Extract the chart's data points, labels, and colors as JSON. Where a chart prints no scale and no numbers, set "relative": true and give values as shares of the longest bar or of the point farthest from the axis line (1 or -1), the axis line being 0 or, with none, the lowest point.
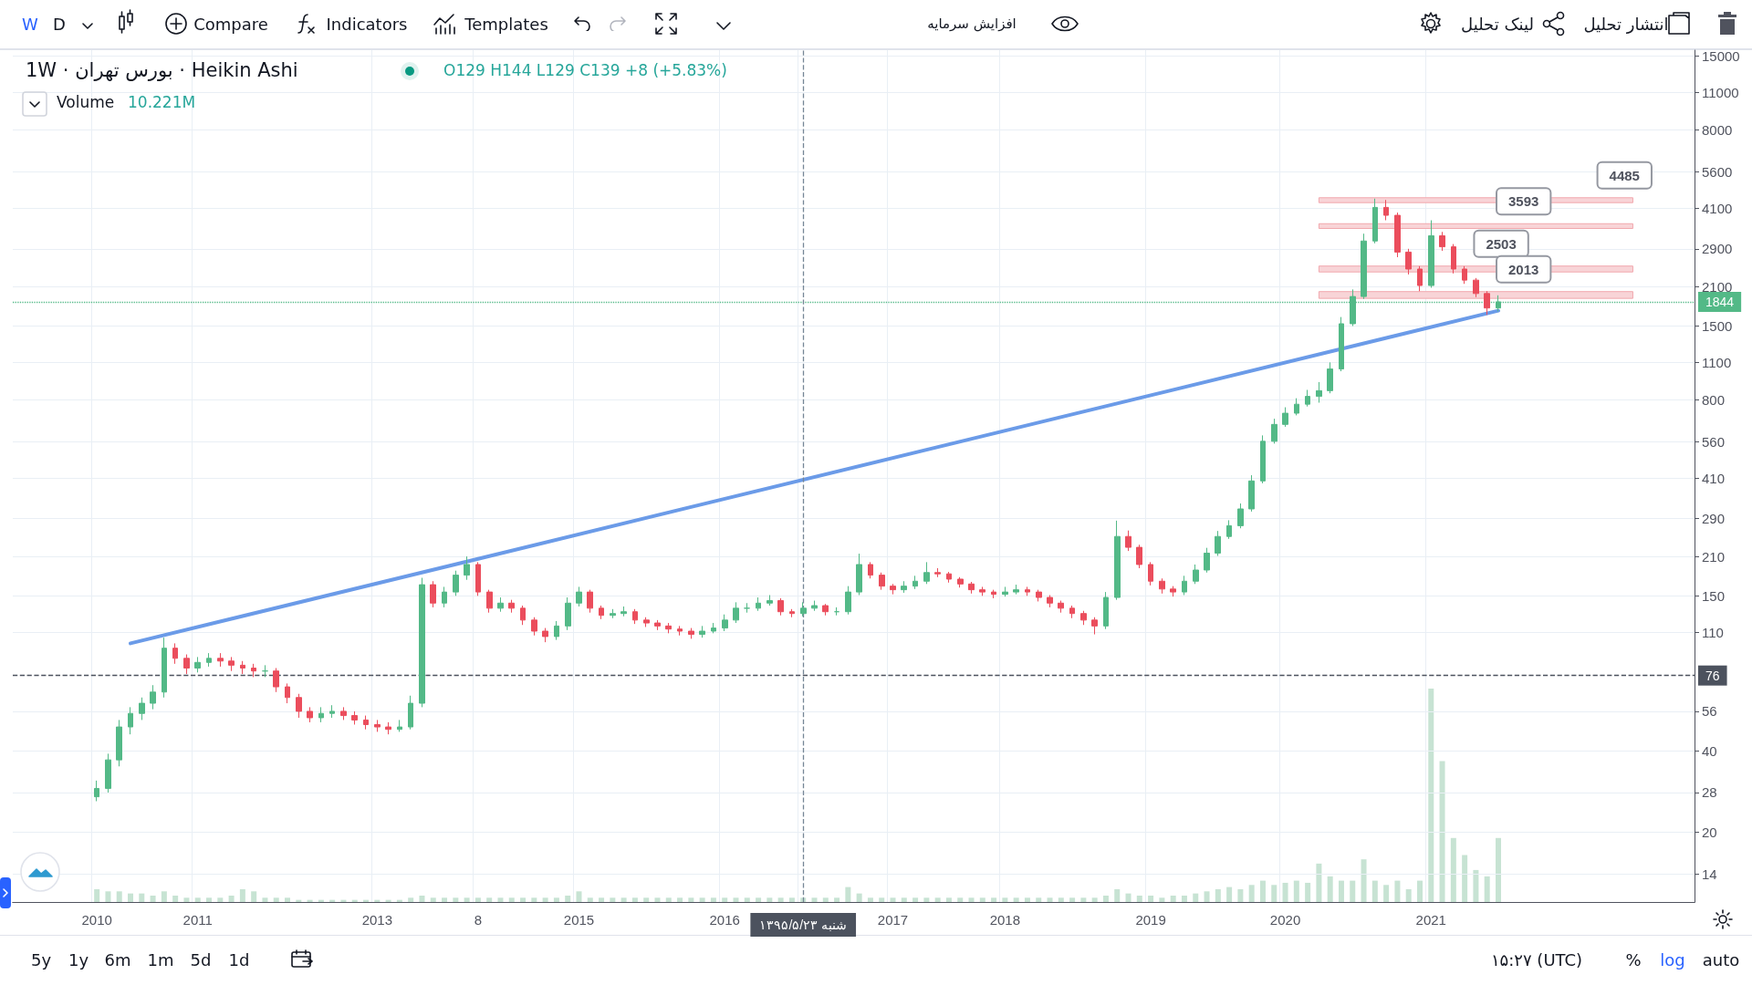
{
  "chart_data": [
    {
      "type": "candlestick",
      "title": "1W · بورس تهران · Heikin Ashi",
      "subtitle": "O129 H144 L129 C139 +8 (+5.83%)",
      "categories": [
        null,
        null,
        null,
        null,
        null,
        null,
        null,
        "2010",
        null,
        null,
        null,
        null,
        null,
        null,
        null,
        null,
        "2011",
        null,
        null,
        null,
        null,
        null,
        null,
        null,
        null,
        null,
        null,
        null,
        null,
        null,
        null,
        null,
        "2013",
        null,
        null,
        null,
        null,
        null,
        null,
        null,
        null,
        "8",
        null,
        null,
        null,
        null,
        null,
        null,
        null,
        null,
        "2015",
        null,
        null,
        null,
        null,
        null,
        null,
        null,
        null,
        null,
        null,
        null,
        null,
        "2016",
        null,
        null,
        null,
        null,
        null,
        null,
        "شنبه ۱۳۹۵/۵/۲۳",
        null,
        null,
        null,
        null,
        null,
        null,
        null,
        "2017",
        null,
        null,
        null,
        null,
        null,
        null,
        null,
        null,
        null,
        "2018",
        null,
        null,
        null,
        null,
        null,
        null,
        null,
        null,
        null,
        null,
        null,
        null,
        "2019",
        null,
        null,
        null,
        null,
        null,
        null,
        null,
        null,
        null,
        null,
        null,
        "2020",
        null,
        null,
        null,
        null,
        null,
        null,
        null,
        null,
        null,
        null,
        null,
        null,
        "2021",
        null,
        null,
        null,
        null,
        null,
        null,
        null,
        null,
        null,
        null,
        null,
        null,
        null,
        null,
        null,
        null,
        null,
        null,
        null,
        null,
        null,
        null,
        null
      ],
      "ohlc": [
        null,
        null,
        null,
        null,
        null,
        null,
        null,
        [
          27,
          31,
          26,
          29
        ],
        [
          29,
          39,
          28,
          37
        ],
        [
          37,
          52,
          35,
          49
        ],
        [
          49,
          58,
          46,
          55
        ],
        [
          55,
          63,
          52,
          60
        ],
        [
          60,
          70,
          57,
          66
        ],
        [
          66,
          105,
          63,
          96
        ],
        [
          96,
          100,
          84,
          88
        ],
        [
          88,
          91,
          77,
          81
        ],
        [
          81,
          89,
          78,
          85
        ],
        [
          85,
          92,
          82,
          88
        ],
        [
          88,
          92,
          82,
          86
        ],
        [
          86,
          89,
          79,
          83
        ],
        [
          83,
          86,
          77,
          81
        ],
        [
          81,
          84,
          75,
          79
        ],
        [
          79,
          83,
          75,
          79
        ],
        [
          79,
          81,
          66,
          69
        ],
        [
          69,
          71,
          60,
          63
        ],
        [
          63,
          65,
          53,
          56
        ],
        [
          56,
          58,
          51,
          53
        ],
        [
          53,
          58,
          51,
          55
        ],
        [
          55,
          59,
          53,
          56
        ],
        [
          56,
          58,
          52,
          54
        ],
        [
          54,
          56,
          50,
          52
        ],
        [
          52,
          54,
          48,
          50
        ],
        [
          50,
          52,
          47,
          49
        ],
        [
          49,
          51,
          46,
          48
        ],
        [
          48,
          52,
          47,
          49
        ],
        [
          49,
          64,
          48,
          60
        ],
        [
          60,
          175,
          58,
          165
        ],
        [
          165,
          170,
          136,
          141
        ],
        [
          141,
          162,
          136,
          155
        ],
        [
          155,
          186,
          150,
          179
        ],
        [
          179,
          210,
          172,
          196
        ],
        [
          196,
          200,
          150,
          155
        ],
        [
          155,
          158,
          130,
          135
        ],
        [
          135,
          148,
          131,
          141
        ],
        [
          141,
          145,
          130,
          135
        ],
        [
          135,
          138,
          117,
          122
        ],
        [
          122,
          125,
          107,
          111
        ],
        [
          111,
          114,
          101,
          106
        ],
        [
          106,
          121,
          103,
          116
        ],
        [
          116,
          148,
          112,
          141
        ],
        [
          141,
          162,
          137,
          155
        ],
        [
          155,
          158,
          130,
          135
        ],
        [
          135,
          138,
          123,
          127
        ],
        [
          127,
          134,
          124,
          129
        ],
        [
          129,
          137,
          126,
          131
        ],
        [
          131,
          134,
          118,
          122
        ],
        [
          122,
          125,
          115,
          119
        ],
        [
          119,
          122,
          112,
          116
        ],
        [
          116,
          119,
          109,
          113
        ],
        [
          113,
          116,
          107,
          111
        ],
        [
          111,
          114,
          104,
          108
        ],
        [
          108,
          116,
          105,
          111
        ],
        [
          111,
          119,
          109,
          114
        ],
        [
          114,
          128,
          111,
          122
        ],
        [
          122,
          142,
          119,
          135
        ],
        [
          135,
          141,
          130,
          135
        ],
        [
          135,
          148,
          132,
          141
        ],
        [
          141,
          151,
          138,
          144
        ],
        [
          144,
          147,
          127,
          131
        ],
        [
          131,
          134,
          125,
          129
        ],
        [
          129,
          142,
          126,
          135
        ],
        [
          135,
          144,
          132,
          138
        ],
        [
          138,
          140,
          127,
          131
        ],
        [
          131,
          136,
          127,
          131
        ],
        [
          131,
          163,
          128,
          155
        ],
        [
          155,
          215,
          151,
          196
        ],
        [
          196,
          200,
          174,
          179
        ],
        [
          179,
          183,
          158,
          163
        ],
        [
          163,
          166,
          152,
          158
        ],
        [
          158,
          170,
          154,
          163
        ],
        [
          163,
          178,
          159,
          170
        ],
        [
          170,
          200,
          166,
          183
        ],
        [
          183,
          190,
          176,
          181
        ],
        [
          181,
          184,
          168,
          173
        ],
        [
          173,
          176,
          161,
          166
        ],
        [
          166,
          169,
          153,
          158
        ],
        [
          158,
          162,
          150,
          155
        ],
        [
          155,
          158,
          147,
          152
        ],
        [
          152,
          162,
          149,
          155
        ],
        [
          155,
          165,
          152,
          158
        ],
        [
          158,
          162,
          150,
          155
        ],
        [
          155,
          158,
          143,
          148
        ],
        [
          148,
          151,
          136,
          141
        ],
        [
          141,
          144,
          130,
          135
        ],
        [
          135,
          138,
          124,
          129
        ],
        [
          129,
          132,
          117,
          122
        ],
        [
          122,
          125,
          108,
          116
        ],
        [
          116,
          155,
          113,
          148
        ],
        [
          148,
          285,
          145,
          249
        ],
        [
          249,
          262,
          220,
          227
        ],
        [
          227,
          232,
          190,
          196
        ],
        [
          196,
          200,
          164,
          170
        ],
        [
          170,
          174,
          153,
          159
        ],
        [
          159,
          163,
          149,
          155
        ],
        [
          155,
          178,
          151,
          170
        ],
        [
          170,
          196,
          166,
          187
        ],
        [
          187,
          226,
          183,
          216
        ],
        [
          216,
          261,
          211,
          249
        ],
        [
          249,
          286,
          244,
          273
        ],
        [
          273,
          330,
          267,
          315
        ],
        [
          315,
          420,
          308,
          400
        ],
        [
          400,
          590,
          392,
          561
        ],
        [
          561,
          680,
          550,
          648
        ],
        [
          648,
          750,
          635,
          713
        ],
        [
          713,
          810,
          700,
          770
        ],
        [
          770,
          870,
          755,
          823
        ],
        [
          823,
          930,
          780,
          864
        ],
        [
          864,
          1100,
          845,
          1040
        ],
        [
          1040,
          1620,
          1020,
          1530
        ],
        [
          1530,
          2050,
          1500,
          1930
        ],
        [
          1930,
          3300,
          1890,
          3100
        ],
        [
          3100,
          4450,
          3040,
          4130
        ],
        [
          4130,
          4400,
          3700,
          3860
        ],
        [
          3860,
          3950,
          2700,
          2820
        ],
        [
          2820,
          2900,
          2330,
          2440
        ],
        [
          2440,
          2500,
          2020,
          2120
        ],
        [
          2120,
          3700,
          2080,
          3240
        ],
        [
          3240,
          3350,
          2850,
          2950
        ],
        [
          2950,
          3020,
          2350,
          2440
        ],
        [
          2440,
          2500,
          2150,
          2220
        ],
        [
          2220,
          2260,
          1920,
          1980
        ],
        [
          1980,
          2020,
          1650,
          1750
        ],
        [
          1750,
          1950,
          1700,
          1844
        ],
        null,
        null,
        null,
        null,
        null,
        null,
        null,
        null,
        null,
        null,
        null,
        null,
        null,
        null,
        null,
        null,
        null
      ],
      "colors": [
        null,
        null,
        null,
        null,
        null,
        null,
        null,
        "#53b987",
        "#53b987",
        "#53b987",
        "#53b987",
        "#53b987",
        "#53b987",
        "#53b987",
        "#eb4d5c",
        "#eb4d5c",
        "#53b987",
        "#53b987",
        "#eb4d5c",
        "#eb4d5c",
        "#eb4d5c",
        "#eb4d5c",
        "#53b987",
        "#eb4d5c",
        "#eb4d5c",
        "#eb4d5c",
        "#eb4d5c",
        "#53b987",
        "#53b987",
        "#eb4d5c",
        "#eb4d5c",
        "#eb4d5c",
        "#eb4d5c",
        "#eb4d5c",
        "#53b987",
        "#53b987",
        "#53b987",
        "#eb4d5c",
        "#53b987",
        "#53b987",
        "#53b987",
        "#eb4d5c",
        "#eb4d5c",
        "#53b987",
        "#eb4d5c",
        "#eb4d5c",
        "#eb4d5c",
        "#eb4d5c",
        "#53b987",
        "#53b987",
        "#53b987",
        "#eb4d5c",
        "#eb4d5c",
        "#53b987",
        "#53b987",
        "#eb4d5c",
        "#eb4d5c",
        "#eb4d5c",
        "#eb4d5c",
        "#eb4d5c",
        "#eb4d5c",
        "#53b987",
        "#53b987",
        "#53b987",
        "#53b987",
        "#53b987",
        "#53b987",
        "#53b987",
        "#eb4d5c",
        "#eb4d5c",
        "#53b987",
        "#53b987",
        "#eb4d5c",
        "#53b987",
        "#53b987",
        "#53b987",
        "#eb4d5c",
        "#eb4d5c",
        "#eb4d5c",
        "#53b987",
        "#53b987",
        "#53b987",
        "#eb4d5c",
        "#eb4d5c",
        "#eb4d5c",
        "#eb4d5c",
        "#eb4d5c",
        "#eb4d5c",
        "#53b987",
        "#53b987",
        "#eb4d5c",
        "#eb4d5c",
        "#eb4d5c",
        "#eb4d5c",
        "#eb4d5c",
        "#eb4d5c",
        "#eb4d5c",
        "#53b987",
        "#53b987",
        "#eb4d5c",
        "#eb4d5c",
        "#eb4d5c",
        "#eb4d5c",
        "#eb4d5c",
        "#53b987",
        "#53b987",
        "#53b987",
        "#53b987",
        "#53b987",
        "#53b987",
        "#53b987",
        "#53b987",
        "#53b987",
        "#53b987",
        "#53b987",
        "#53b987",
        "#53b987",
        "#53b987",
        "#53b987",
        "#53b987",
        "#53b987",
        "#53b987",
        "#eb4d5c",
        "#eb4d5c",
        "#eb4d5c",
        "#eb4d5c",
        "#53b987",
        "#eb4d5c",
        "#eb4d5c",
        "#eb4d5c",
        "#eb4d5c",
        "#eb4d5c",
        "#53b987",
        null,
        null,
        null,
        null,
        null,
        null,
        null,
        null,
        null,
        null,
        null,
        null,
        null,
        null,
        null,
        null,
        null
      ],
      "series": [
        {
          "type": "line",
          "color": "#6b9be8",
          "values": [
            null,
            null,
            null,
            null,
            null,
            null,
            null,
            null,
            null,
            null,
            100,
            null,
            null,
            null,
            null,
            null,
            null,
            null,
            null,
            null,
            null,
            null,
            null,
            null,
            null,
            null,
            null,
            null,
            null,
            null,
            null,
            null,
            null,
            null,
            null,
            null,
            null,
            null,
            null,
            null,
            null,
            null,
            null,
            null,
            null,
            null,
            null,
            null,
            null,
            null,
            null,
            null,
            null,
            null,
            null,
            null,
            null,
            null,
            null,
            null,
            null,
            null,
            null,
            null,
            null,
            null,
            null,
            null,
            null,
            null,
            null,
            null,
            null,
            null,
            null,
            null,
            null,
            null,
            null,
            null,
            null,
            null,
            null,
            null,
            null,
            null,
            null,
            null,
            null,
            null,
            null,
            null,
            null,
            null,
            null,
            null,
            null,
            null,
            null,
            null,
            null,
            null,
            null,
            null,
            null,
            null,
            null,
            null,
            null,
            null,
            null,
            null,
            null,
            null,
            null,
            null,
            null,
            null,
            null,
            null,
            null,
            null,
            null,
            null,
            null,
            null,
            null,
            null,
            null,
            null,
            null,
            null,
            1710,
            null,
            null,
            null,
            null,
            null,
            null,
            null,
            null,
            null,
            null,
            null,
            null,
            null,
            null,
            null,
            null,
            null
          ]
        }
      ],
      "log": "y",
      "ylim": [
        11,
        15800
      ],
      "yticks": [
        14,
        20,
        28,
        40,
        56,
        110,
        150,
        210,
        290,
        410,
        560,
        800,
        1100,
        1500,
        2100,
        2900,
        4100,
        5600,
        8000,
        11000,
        15000
      ],
      "grid": true,
      "ref_lines": [
        {
          "axis": "y",
          "value": 76,
          "label": "76",
          "color": "#4c525e",
          "line_style": "dashed"
        },
        {
          "axis": "y",
          "value": 1844,
          "label": "1844",
          "color": "#53b987",
          "line_style": "dotted"
        },
        {
          "axis": "x",
          "value": "شنبه ۱۳۹۵/۵/۲۳",
          "color": "#758696",
          "line_style": "dashed"
        }
      ],
      "bands": [
        {
          "axis": "y",
          "from": 4300,
          "to": 4485,
          "color": "#f8d4d7"
        },
        {
          "axis": "y",
          "from": 3450,
          "to": 3593,
          "color": "#f8d4d7"
        },
        {
          "axis": "y",
          "from": 2380,
          "to": 2503,
          "color": "#f8d4d7"
        },
        {
          "axis": "y",
          "from": 1900,
          "to": 2013,
          "color": "#f8d4d7"
        }
      ],
      "annotations": [
        {
          "text": "4485",
          "y": 4485
        },
        {
          "text": "3593",
          "y": 3593
        },
        {
          "text": "2503",
          "y": 2503
        },
        {
          "text": "2013",
          "y": 2013
        },
        "W",
        "D",
        "Compare",
        "Indicators",
        "Templates",
        "افزایش سرمایه",
        "لینک تحلیل",
        "انتشار تحلیل",
        "5y",
        "1y",
        "6m",
        "1m",
        "5d",
        "1d",
        "۱۵:۲۷ (UTC)",
        "%",
        "log",
        "auto"
      ]
    },
    {
      "type": "bar",
      "relative": true,
      "title": "Volume",
      "subtitle": "10.221M",
      "color": "#b9dcc8",
      "categories": [
        null,
        null,
        null,
        null,
        null,
        null,
        null,
        null,
        null,
        null,
        null,
        null,
        null,
        null,
        null,
        null,
        null,
        null,
        null,
        null,
        null,
        null,
        null,
        null,
        null,
        null,
        null,
        null,
        null,
        null,
        null,
        null,
        null,
        null,
        null,
        null,
        null,
        null,
        null,
        null,
        null,
        null,
        null,
        null,
        null,
        null,
        null,
        null,
        null,
        null,
        null,
        null,
        null,
        null,
        null,
        null,
        null,
        null,
        null,
        null,
        null,
        null,
        null,
        null,
        null,
        null,
        null,
        null,
        null,
        null,
        null,
        null,
        null,
        null,
        null,
        null,
        null,
        null,
        null,
        null,
        null,
        null,
        null,
        null,
        null,
        null,
        null,
        null,
        null,
        null,
        null,
        null,
        null,
        null,
        null,
        null,
        null,
        null,
        null,
        null,
        null,
        null,
        null,
        null,
        null,
        null,
        null,
        null,
        null,
        null,
        null,
        null,
        null,
        null,
        null,
        null,
        null,
        null,
        null,
        null,
        null,
        null,
        null,
        null,
        null,
        null,
        null,
        null,
        null,
        null,
        null,
        null,
        null,
        null,
        null,
        null,
        null,
        null,
        null,
        null,
        null,
        null,
        null,
        null,
        null,
        null,
        null,
        null,
        null,
        null
      ],
      "values": [
        null,
        null,
        null,
        null,
        null,
        null,
        null,
        0.06,
        0.05,
        0.05,
        0.04,
        0.04,
        0.03,
        0.05,
        0.03,
        0.02,
        0.02,
        0.02,
        0.02,
        0.03,
        0.06,
        0.05,
        0.02,
        0.02,
        0.02,
        0.01,
        0.01,
        0.01,
        0.01,
        0.01,
        0.01,
        0.01,
        0.01,
        0.01,
        0.01,
        0.02,
        0.03,
        0.02,
        0.02,
        0.02,
        0.02,
        0.02,
        0.02,
        0.02,
        0.02,
        0.02,
        0.02,
        0.02,
        0.02,
        0.03,
        0.05,
        0.02,
        0.02,
        0.02,
        0.02,
        0.02,
        0.02,
        0.02,
        0.02,
        0.02,
        0.02,
        0.02,
        0.02,
        0.02,
        0.02,
        0.02,
        0.02,
        0.02,
        0.02,
        0.02,
        0.02,
        0.02,
        0.02,
        0.02,
        0.07,
        0.04,
        0.02,
        0.02,
        0.02,
        0.02,
        0.02,
        0.02,
        0.02,
        0.02,
        0.02,
        0.02,
        0.02,
        0.02,
        0.02,
        0.02,
        0.02,
        0.02,
        0.02,
        0.02,
        0.02,
        0.02,
        0.02,
        0.03,
        0.06,
        0.04,
        0.03,
        0.03,
        0.02,
        0.03,
        0.03,
        0.04,
        0.05,
        0.06,
        0.07,
        0.06,
        0.08,
        0.1,
        0.08,
        0.09,
        0.1,
        0.09,
        0.18,
        0.12,
        0.1,
        0.1,
        0.2,
        0.1,
        0.08,
        0.1,
        0.06,
        0.1,
        1,
        0.66,
        0.3,
        0.22,
        0.15,
        0.12,
        0.3,
        null,
        null,
        null,
        null,
        null,
        null,
        null,
        null,
        null,
        null,
        null,
        null,
        null,
        null,
        null,
        null,
        null
      ]
    }
  ]
}
